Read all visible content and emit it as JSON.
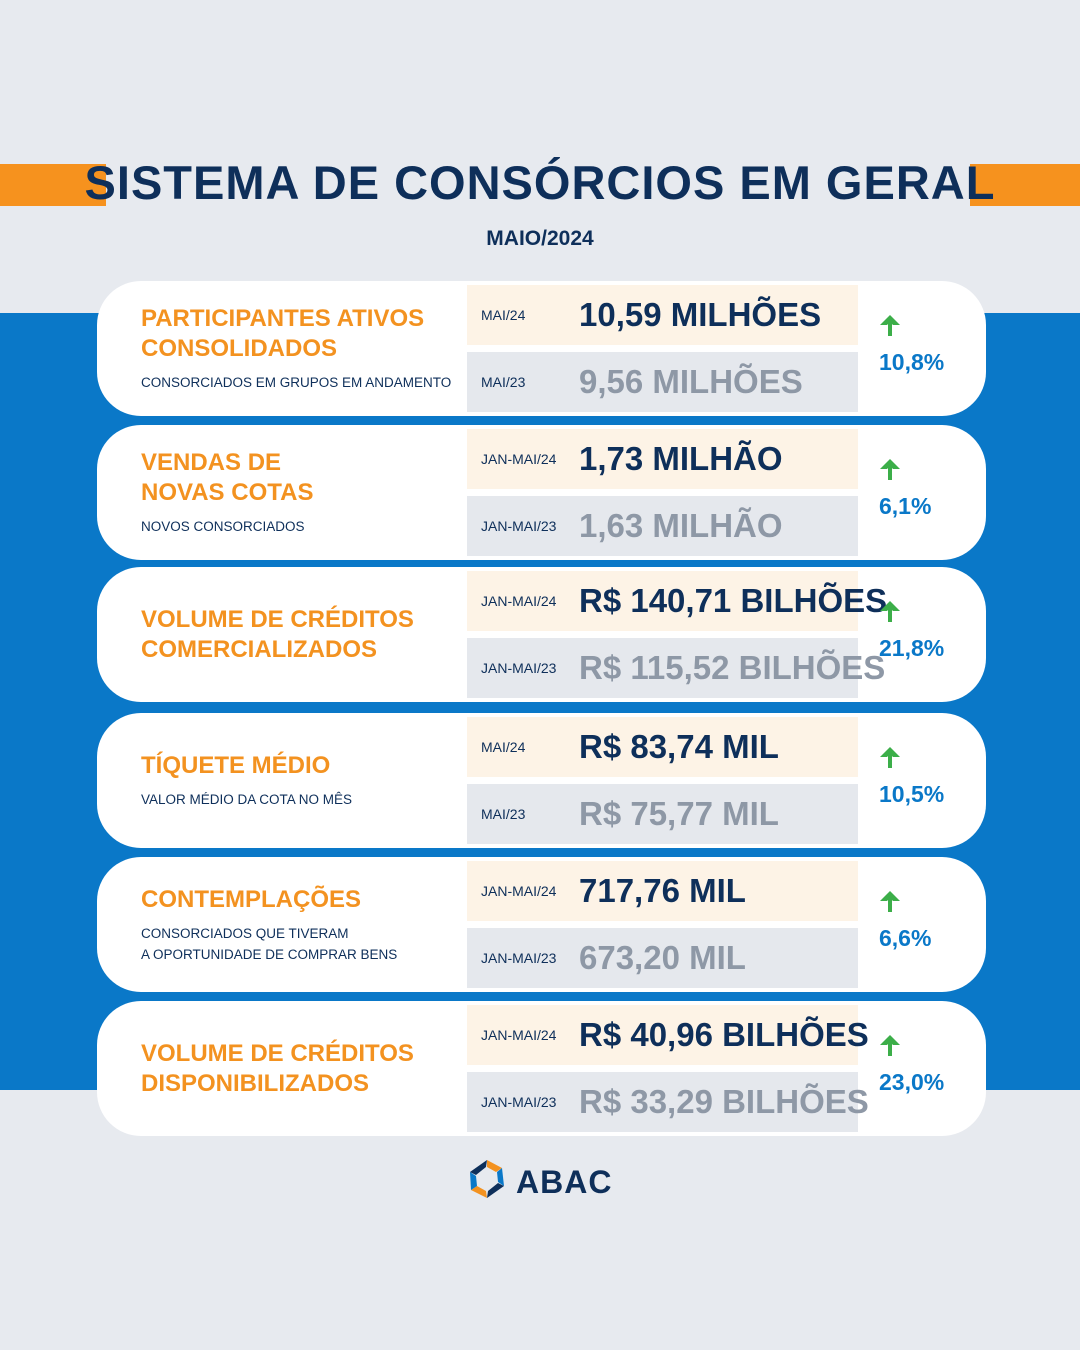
{
  "header": {
    "title": "SISTEMA DE CONSÓRCIOS EM GERAL",
    "subtitle": "MAIO/2024"
  },
  "cards": [
    {
      "title": "PARTICIPANTES ATIVOS\nCONSOLIDADOS",
      "description": "CONSORCIADOS EM GRUPOS EM ANDAMENTO",
      "current_period": "MAI/24",
      "current_value": "10,59 MILHÕES",
      "previous_period": "MAI/23",
      "previous_value": "9,56 MILHÕES",
      "change": "10,8%",
      "trend_icon": "arrow-up-icon"
    },
    {
      "title": "VENDAS DE\nNOVAS COTAS",
      "description": "NOVOS CONSORCIADOS",
      "current_period": "JAN-MAI/24",
      "current_value": "1,73 MILHÃO",
      "previous_period": "JAN-MAI/23",
      "previous_value": "1,63 MILHÃO",
      "change": "6,1%",
      "trend_icon": "arrow-up-icon"
    },
    {
      "title": "VOLUME DE CRÉDITOS\nCOMERCIALIZADOS",
      "description": "",
      "current_period": "JAN-MAI/24",
      "current_value": "R$ 140,71 BILHÕES",
      "previous_period": "JAN-MAI/23",
      "previous_value": "R$ 115,52 BILHÕES",
      "change": "21,8%",
      "trend_icon": "arrow-up-icon"
    },
    {
      "title": "TÍQUETE MÉDIO",
      "description": "VALOR MÉDIO DA COTA NO MÊS",
      "current_period": "MAI/24",
      "current_value": "R$ 83,74 MIL",
      "previous_period": "MAI/23",
      "previous_value": "R$ 75,77 MIL",
      "change": "10,5%",
      "trend_icon": "arrow-up-icon"
    },
    {
      "title": "CONTEMPLAÇÕES",
      "description": "CONSORCIADOS QUE TIVERAM\nA OPORTUNIDADE DE COMPRAR BENS",
      "current_period": "JAN-MAI/24",
      "current_value": "717,76 MIL",
      "previous_period": "JAN-MAI/23",
      "previous_value": "673,20 MIL",
      "change": "6,6%",
      "trend_icon": "arrow-up-icon"
    },
    {
      "title": "VOLUME DE CRÉDITOS\nDISPONIBILIZADOS",
      "description": "",
      "current_period": "JAN-MAI/24",
      "current_value": "R$ 40,96 BILHÕES",
      "previous_period": "JAN-MAI/23",
      "previous_value": "R$ 33,29 BILHÕES",
      "change": "23,0%",
      "trend_icon": "arrow-up-icon"
    }
  ],
  "footer": {
    "logo_text": "ABAC"
  },
  "colors": {
    "navy": "#0e2f5a",
    "orange": "#f39220",
    "blue": "#0a78c8",
    "arrow_green": "#3cae49",
    "muted": "#8e98a6"
  }
}
